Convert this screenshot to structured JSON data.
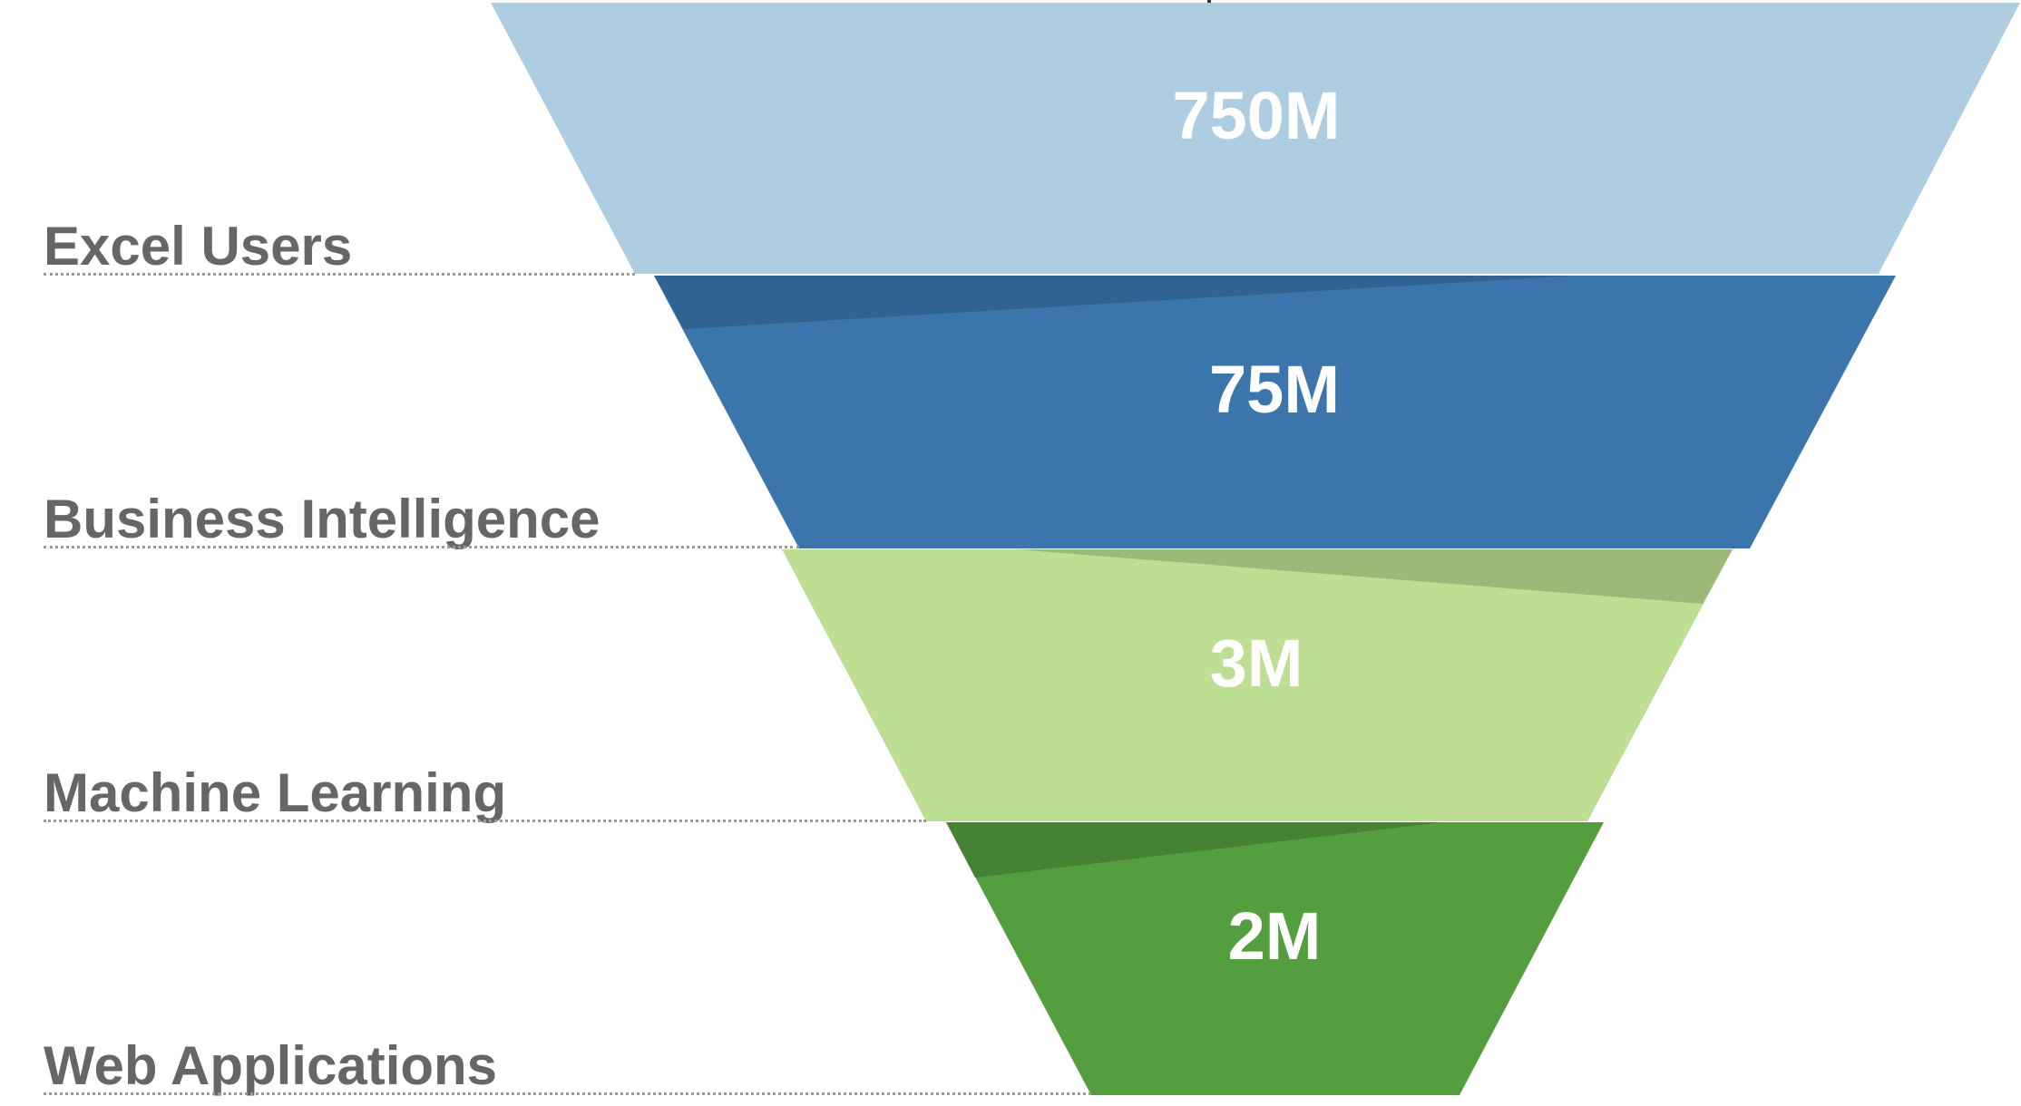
{
  "funnel": {
    "stages": [
      {
        "label": "Excel Users",
        "value": "750M",
        "color": "#afcde1",
        "shade": "#afcde1"
      },
      {
        "label": "Business Intelligence",
        "value": "75M",
        "color": "#3b75ac",
        "shade": "#306292"
      },
      {
        "label": "Machine Learning",
        "value": "3M",
        "color": "#bddf94",
        "shade": "#9cb979"
      },
      {
        "label": "Web Applications",
        "value": "2M",
        "color": "#549e3f",
        "shade": "#458233"
      }
    ]
  }
}
